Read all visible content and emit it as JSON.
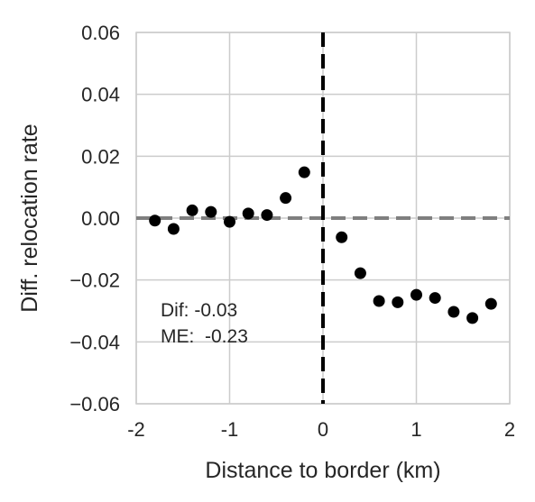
{
  "chart_data": {
    "type": "scatter",
    "title": "",
    "xlabel": "Distance to border (km)",
    "ylabel": "Diff. relocation rate",
    "xlim": [
      -2,
      2
    ],
    "ylim": [
      -0.06,
      0.06
    ],
    "xticks": [
      -2,
      -1,
      0,
      1,
      2
    ],
    "xtick_labels": [
      "-2",
      "-1",
      "0",
      "1",
      "2"
    ],
    "yticks": [
      -0.06,
      -0.04,
      -0.02,
      0.0,
      0.02,
      0.04,
      0.06
    ],
    "ytick_labels": [
      "−0.06",
      "−0.04",
      "−0.02",
      "0.00",
      "0.02",
      "0.04",
      "0.06"
    ],
    "grid": true,
    "reference_lines": [
      {
        "orientation": "horizontal",
        "value": 0.0,
        "style": "dashed",
        "color": "#7f7f7f"
      },
      {
        "orientation": "vertical",
        "value": 0.0,
        "style": "dashed",
        "color": "#000000"
      }
    ],
    "series": [
      {
        "color": "#000000",
        "points": [
          {
            "x": -1.8,
            "y": -0.0008
          },
          {
            "x": -1.6,
            "y": -0.0035
          },
          {
            "x": -1.4,
            "y": 0.0025
          },
          {
            "x": -1.2,
            "y": 0.002
          },
          {
            "x": -1.0,
            "y": -0.0012
          },
          {
            "x": -0.8,
            "y": 0.0015
          },
          {
            "x": -0.6,
            "y": 0.001
          },
          {
            "x": -0.4,
            "y": 0.0065
          },
          {
            "x": -0.2,
            "y": 0.0148
          },
          {
            "x": 0.2,
            "y": -0.0062
          },
          {
            "x": 0.4,
            "y": -0.0178
          },
          {
            "x": 0.6,
            "y": -0.0268
          },
          {
            "x": 0.8,
            "y": -0.0272
          },
          {
            "x": 1.0,
            "y": -0.0248
          },
          {
            "x": 1.2,
            "y": -0.0258
          },
          {
            "x": 1.4,
            "y": -0.0303
          },
          {
            "x": 1.6,
            "y": -0.0323
          },
          {
            "x": 1.8,
            "y": -0.0277
          }
        ]
      }
    ],
    "annotations": {
      "dif": "Dif: -0.03",
      "me": "ME:  -0.23"
    }
  }
}
